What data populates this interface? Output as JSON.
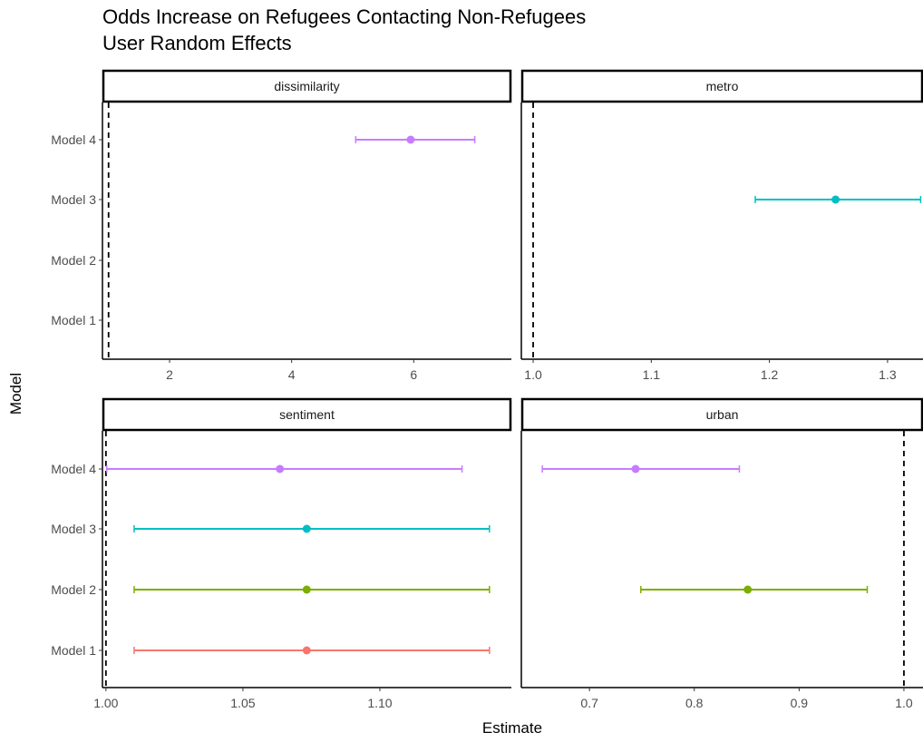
{
  "chart_data": {
    "type": "forest",
    "title": "Odds Increase on Refugees Contacting Non-Refugees",
    "subtitle": "User Random Effects",
    "xlabel": "Estimate",
    "ylabel": "Model",
    "y_categories": [
      "Model 1",
      "Model 2",
      "Model 3",
      "Model 4"
    ],
    "colors": {
      "Model 1": "#F8766D",
      "Model 2": "#7CAE00",
      "Model 3": "#00BFC4",
      "Model 4": "#C77CFF"
    },
    "reference_line_style": "dashed",
    "panels": [
      {
        "name": "dissimilarity",
        "xlim": [
          0.9,
          7.6
        ],
        "xticks": [
          2,
          4,
          6
        ],
        "xtick_labels": [
          "2",
          "4",
          "6"
        ],
        "reference_line": 1,
        "points": [
          {
            "model": "Model 4",
            "estimate": 5.95,
            "low": 5.05,
            "high": 7.0
          }
        ]
      },
      {
        "name": "metro",
        "xlim": [
          0.99,
          1.33
        ],
        "xticks": [
          1.0,
          1.1,
          1.2,
          1.3
        ],
        "xtick_labels": [
          "1.0",
          "1.1",
          "1.2",
          "1.3"
        ],
        "reference_line": 1,
        "points": [
          {
            "model": "Model 3",
            "estimate": 1.256,
            "low": 1.188,
            "high": 1.328
          }
        ]
      },
      {
        "name": "sentiment",
        "xlim": [
          0.99873,
          1.148
        ],
        "xticks": [
          1.0,
          1.05,
          1.1
        ],
        "xtick_labels": [
          "1.00",
          "1.05",
          "1.10"
        ],
        "reference_line": 1,
        "points": [
          {
            "model": "Model 4",
            "estimate": 1.0635,
            "low": 1.0003,
            "high": 1.13
          },
          {
            "model": "Model 3",
            "estimate": 1.0733,
            "low": 1.0103,
            "high": 1.14
          },
          {
            "model": "Model 2",
            "estimate": 1.0733,
            "low": 1.0103,
            "high": 1.14
          },
          {
            "model": "Model 1",
            "estimate": 1.0733,
            "low": 1.0103,
            "high": 1.14
          }
        ]
      },
      {
        "name": "urban",
        "xlim": [
          0.635,
          1.0182
        ],
        "xticks": [
          0.7,
          0.8,
          0.9,
          1.0
        ],
        "xtick_labels": [
          "0.7",
          "0.8",
          "0.9",
          "1.0"
        ],
        "reference_line": 1,
        "points": [
          {
            "model": "Model 4",
            "estimate": 0.744,
            "low": 0.655,
            "high": 0.843
          },
          {
            "model": "Model 2",
            "estimate": 0.851,
            "low": 0.749,
            "high": 0.965
          }
        ]
      }
    ]
  }
}
